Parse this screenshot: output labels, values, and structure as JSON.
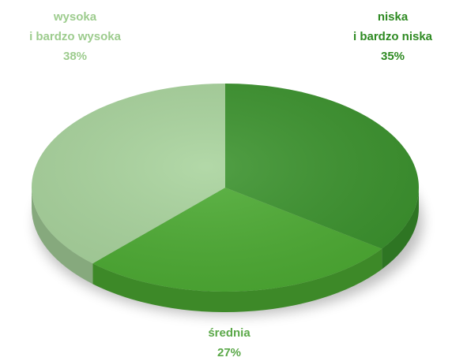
{
  "chart_data": {
    "type": "pie",
    "categories": [
      [
        "niska",
        "i bardzo niska"
      ],
      [
        "średnia"
      ],
      [
        "wysoka",
        "i bardzo wysoka"
      ]
    ],
    "values": [
      35,
      27,
      38
    ],
    "value_labels": [
      "35%",
      "27%",
      "38%"
    ],
    "colors": [
      "#3a922c",
      "#4cab32",
      "#a8d39c"
    ],
    "label_colors": [
      "#2e8a22",
      "#5aa848",
      "#9dcc8e"
    ]
  }
}
